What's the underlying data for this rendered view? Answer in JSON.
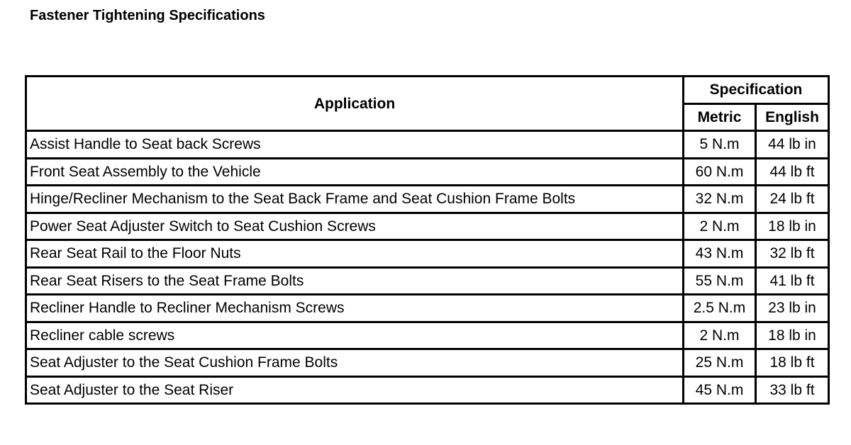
{
  "title": "Fastener Tightening Specifications",
  "table": {
    "headers": {
      "application": "Application",
      "specification": "Specification",
      "metric": "Metric",
      "english": "English"
    },
    "rows": [
      {
        "application": "Assist Handle to Seat back Screws",
        "metric": "5 N.m",
        "english": "44 lb in"
      },
      {
        "application": "Front Seat Assembly to the Vehicle",
        "metric": "60 N.m",
        "english": "44 lb ft"
      },
      {
        "application": "Hinge/Recliner Mechanism to the Seat Back Frame and Seat Cushion Frame Bolts",
        "metric": "32 N.m",
        "english": "24 lb ft"
      },
      {
        "application": "Power Seat Adjuster Switch to Seat Cushion Screws",
        "metric": "2 N.m",
        "english": "18 lb in"
      },
      {
        "application": "Rear Seat Rail to the Floor Nuts",
        "metric": "43 N.m",
        "english": "32 lb ft"
      },
      {
        "application": "Rear Seat Risers to the Seat Frame Bolts",
        "metric": "55 N.m",
        "english": "41 lb ft"
      },
      {
        "application": "Recliner Handle to Recliner Mechanism Screws",
        "metric": "2.5 N.m",
        "english": "23 lb in"
      },
      {
        "application": "Recliner cable screws",
        "metric": "2 N.m",
        "english": "18 lb in"
      },
      {
        "application": "Seat Adjuster to the Seat Cushion Frame Bolts",
        "metric": "25 N.m",
        "english": "18 lb ft"
      },
      {
        "application": "Seat Adjuster to the Seat Riser",
        "metric": "45 N.m",
        "english": "33 lb ft"
      }
    ]
  }
}
